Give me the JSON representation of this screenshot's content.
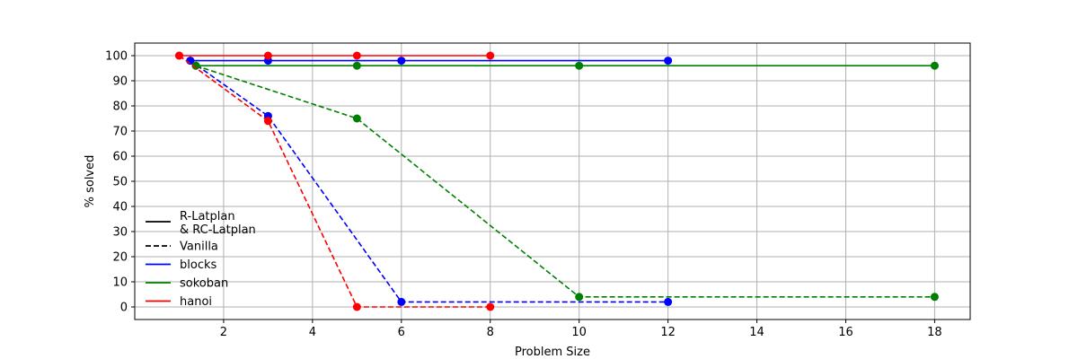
{
  "chart_data": {
    "type": "line",
    "xlabel": "Problem Size",
    "ylabel": "% solved",
    "xlim": [
      0.0,
      18.8
    ],
    "ylim": [
      -5,
      105
    ],
    "xticks": [
      2,
      4,
      6,
      8,
      10,
      12,
      14,
      16,
      18
    ],
    "yticks": [
      0,
      10,
      20,
      30,
      40,
      50,
      60,
      70,
      80,
      90,
      100
    ],
    "grid": true,
    "legend_position": "lower-left",
    "legend": [
      {
        "label": "R-Latplan\n& RC-Latplan",
        "color": "#000000",
        "style": "solid"
      },
      {
        "label": "Vanilla",
        "color": "#000000",
        "style": "dashed"
      },
      {
        "label": "blocks",
        "color": "#0000ff",
        "style": "solid"
      },
      {
        "label": "sokoban",
        "color": "#008000",
        "style": "solid"
      },
      {
        "label": "hanoi",
        "color": "#ff0000",
        "style": "solid"
      }
    ],
    "series": [
      {
        "domain": "blocks",
        "method": "R-Latplan & RC-Latplan",
        "color": "#0000ff",
        "style": "solid",
        "x": [
          1.25,
          3,
          6,
          12
        ],
        "y": [
          98,
          98,
          98,
          98
        ]
      },
      {
        "domain": "blocks",
        "method": "Vanilla",
        "color": "#0000ff",
        "style": "dashed",
        "x": [
          1.25,
          3,
          6,
          12
        ],
        "y": [
          98,
          76,
          2,
          2
        ]
      },
      {
        "domain": "sokoban",
        "method": "R-Latplan & RC-Latplan",
        "color": "#008000",
        "style": "solid",
        "x": [
          1.375,
          5,
          10,
          18
        ],
        "y": [
          96,
          96,
          96,
          96
        ]
      },
      {
        "domain": "sokoban",
        "method": "Vanilla",
        "color": "#008000",
        "style": "dashed",
        "x": [
          1.375,
          5,
          10,
          18
        ],
        "y": [
          96,
          75,
          4,
          4
        ]
      },
      {
        "domain": "hanoi",
        "method": "R-Latplan & RC-Latplan",
        "color": "#ff0000",
        "style": "solid",
        "x": [
          1,
          3,
          5,
          8
        ],
        "y": [
          100,
          100,
          100,
          100
        ]
      },
      {
        "domain": "hanoi",
        "method": "Vanilla",
        "color": "#ff0000",
        "style": "dashed",
        "x": [
          1,
          3,
          5,
          8
        ],
        "y": [
          100,
          74,
          0,
          0
        ]
      }
    ]
  }
}
